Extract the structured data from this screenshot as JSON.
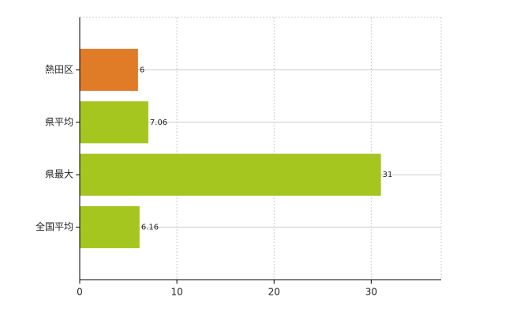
{
  "chart_data": {
    "type": "barh",
    "categories": [
      "熱田区",
      "県平均",
      "県最大",
      "全国平均"
    ],
    "values": [
      6,
      7.06,
      31,
      6.16
    ],
    "colors": [
      "#e07b28",
      "#a5c61f",
      "#a5c61f",
      "#a5c61f"
    ],
    "xlim": [
      0,
      37.2
    ],
    "xticks": [
      0,
      10,
      20,
      30
    ],
    "grid": true
  }
}
